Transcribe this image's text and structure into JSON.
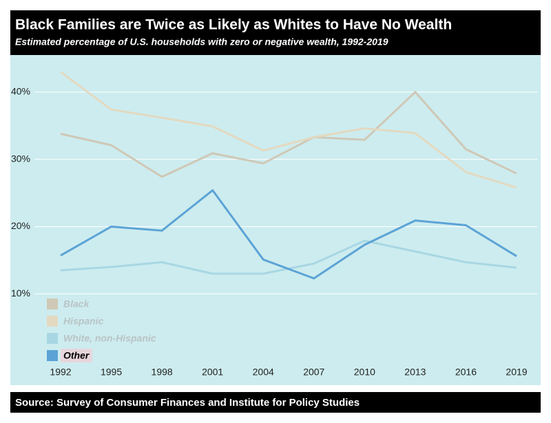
{
  "chart_data": {
    "type": "line",
    "title": "Black Families are Twice as Likely as Whites to Have No Wealth",
    "subtitle": "Estimated percentage of U.S. households with zero or negative wealth, 1992-2019",
    "source": "Source: Survey of Consumer Finances and Institute for Policy Studies",
    "categories": [
      "1992",
      "1995",
      "1998",
      "2001",
      "2004",
      "2007",
      "2010",
      "2013",
      "2016",
      "2019"
    ],
    "series": [
      {
        "name": "Black",
        "color": "#cfc8b6",
        "emphasis": false,
        "values": [
          33.8,
          32.1,
          27.4,
          30.9,
          29.4,
          33.3,
          32.9,
          40.0,
          31.5,
          27.9
        ]
      },
      {
        "name": "Hispanic",
        "color": "#e3d9c0",
        "emphasis": false,
        "values": [
          43.0,
          37.4,
          36.2,
          34.9,
          31.3,
          33.3,
          34.6,
          33.9,
          28.1,
          25.8
        ]
      },
      {
        "name": "White, non-Hispanic",
        "color": "#a8d7e3",
        "emphasis": false,
        "values": [
          13.5,
          14.0,
          14.7,
          13.0,
          13.0,
          14.5,
          17.9,
          16.3,
          14.7,
          13.9
        ]
      },
      {
        "name": "Other",
        "color": "#5ba3d6",
        "emphasis": true,
        "values": [
          15.7,
          20.0,
          19.4,
          25.4,
          15.1,
          12.3,
          17.3,
          20.9,
          20.2,
          15.6
        ]
      }
    ],
    "ylim": [
      0,
      45
    ],
    "yticks": [
      {
        "value": 10,
        "label": "10%"
      },
      {
        "value": 20,
        "label": "20%"
      },
      {
        "value": 30,
        "label": "30%"
      },
      {
        "value": 40,
        "label": "40%"
      }
    ],
    "grid": true,
    "legend": "lower left"
  }
}
